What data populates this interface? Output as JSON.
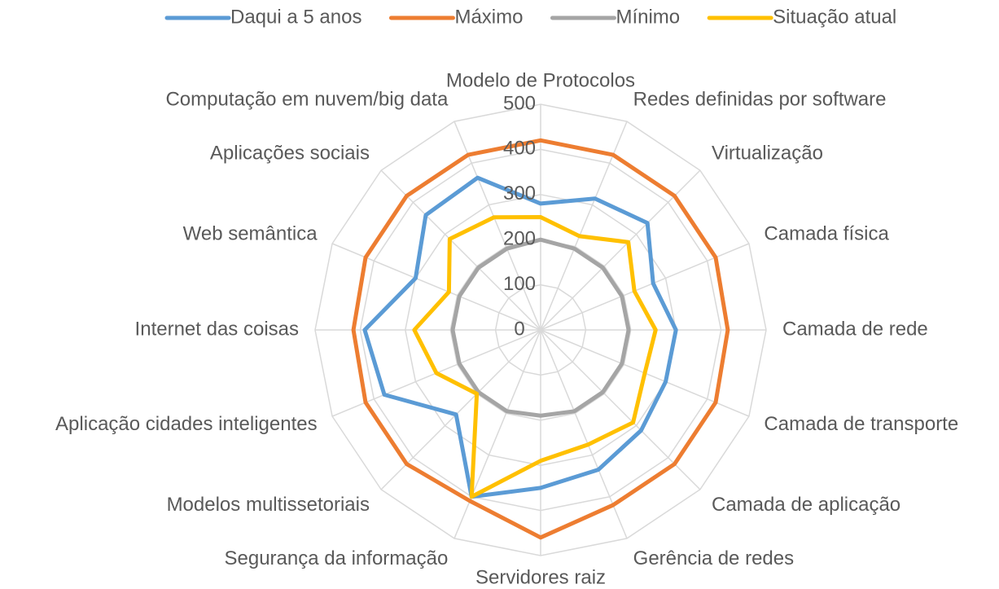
{
  "chart_data": {
    "type": "radar",
    "categories": [
      "Modelo de Protocolos",
      "Redes definidas por software",
      "Virtualização",
      "Camada física",
      "Camada de rede",
      "Camada de transporte",
      "Camada de aplicação",
      "Gerência de redes",
      "Servidores raiz",
      "Segurança da informação",
      "Modelos multissetoriais",
      "Aplicação cidades inteligentes",
      "Internet das coisas",
      "Web semântica",
      "Aplicações sociais",
      "Computação em nuvem/big data"
    ],
    "series": [
      {
        "name": "Daqui a 5 anos",
        "color": "#5b9bd5",
        "values": [
          280,
          315,
          335,
          270,
          300,
          300,
          315,
          335,
          350,
          400,
          265,
          375,
          390,
          300,
          360,
          365
        ]
      },
      {
        "name": "Máximo",
        "color": "#ed7d31",
        "values": [
          420,
          420,
          420,
          420,
          415,
          420,
          420,
          420,
          460,
          410,
          420,
          420,
          415,
          420,
          420,
          420
        ]
      },
      {
        "name": "Mínimo",
        "color": "#a5a5a5",
        "values": [
          200,
          195,
          195,
          195,
          195,
          195,
          195,
          195,
          190,
          195,
          195,
          195,
          195,
          195,
          195,
          195
        ]
      },
      {
        "name": "Situação atual",
        "color": "#ffc000",
        "values": [
          250,
          225,
          275,
          225,
          255,
          250,
          290,
          275,
          290,
          400,
          200,
          250,
          280,
          220,
          285,
          270
        ]
      }
    ],
    "rlim": [
      0,
      500
    ],
    "rticks": [
      0,
      100,
      200,
      300,
      400,
      500
    ],
    "grid": true,
    "legend": "top"
  }
}
